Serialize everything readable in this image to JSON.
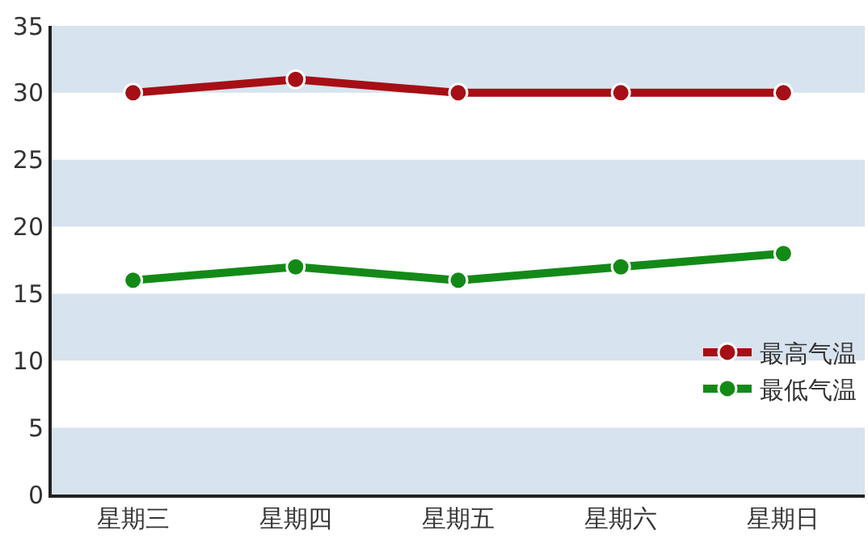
{
  "chart_data": {
    "type": "line",
    "categories": [
      "星期三",
      "星期四",
      "星期五",
      "星期六",
      "星期日"
    ],
    "series": [
      {
        "name": "最高气温",
        "color": "#a50f15",
        "values": [
          30,
          31,
          30,
          30,
          30
        ]
      },
      {
        "name": "最低气温",
        "color": "#138a17",
        "values": [
          16,
          17,
          16,
          17,
          18
        ]
      }
    ],
    "ylim": [
      0,
      35
    ],
    "yticks": [
      0,
      5,
      10,
      15,
      20,
      25,
      30,
      35
    ],
    "bands": [
      {
        "axis": "y",
        "from": 0,
        "to": 5,
        "color": "#d7e3ee"
      },
      {
        "axis": "y",
        "from": 10,
        "to": 15,
        "color": "#d7e3ee"
      },
      {
        "axis": "y",
        "from": 20,
        "to": 25,
        "color": "#d7e3ee"
      },
      {
        "axis": "y",
        "from": 30,
        "to": 35,
        "color": "#d7e3ee"
      }
    ],
    "grid": false,
    "legend": "bottom right",
    "marker": "circle",
    "line_style": "solid"
  }
}
